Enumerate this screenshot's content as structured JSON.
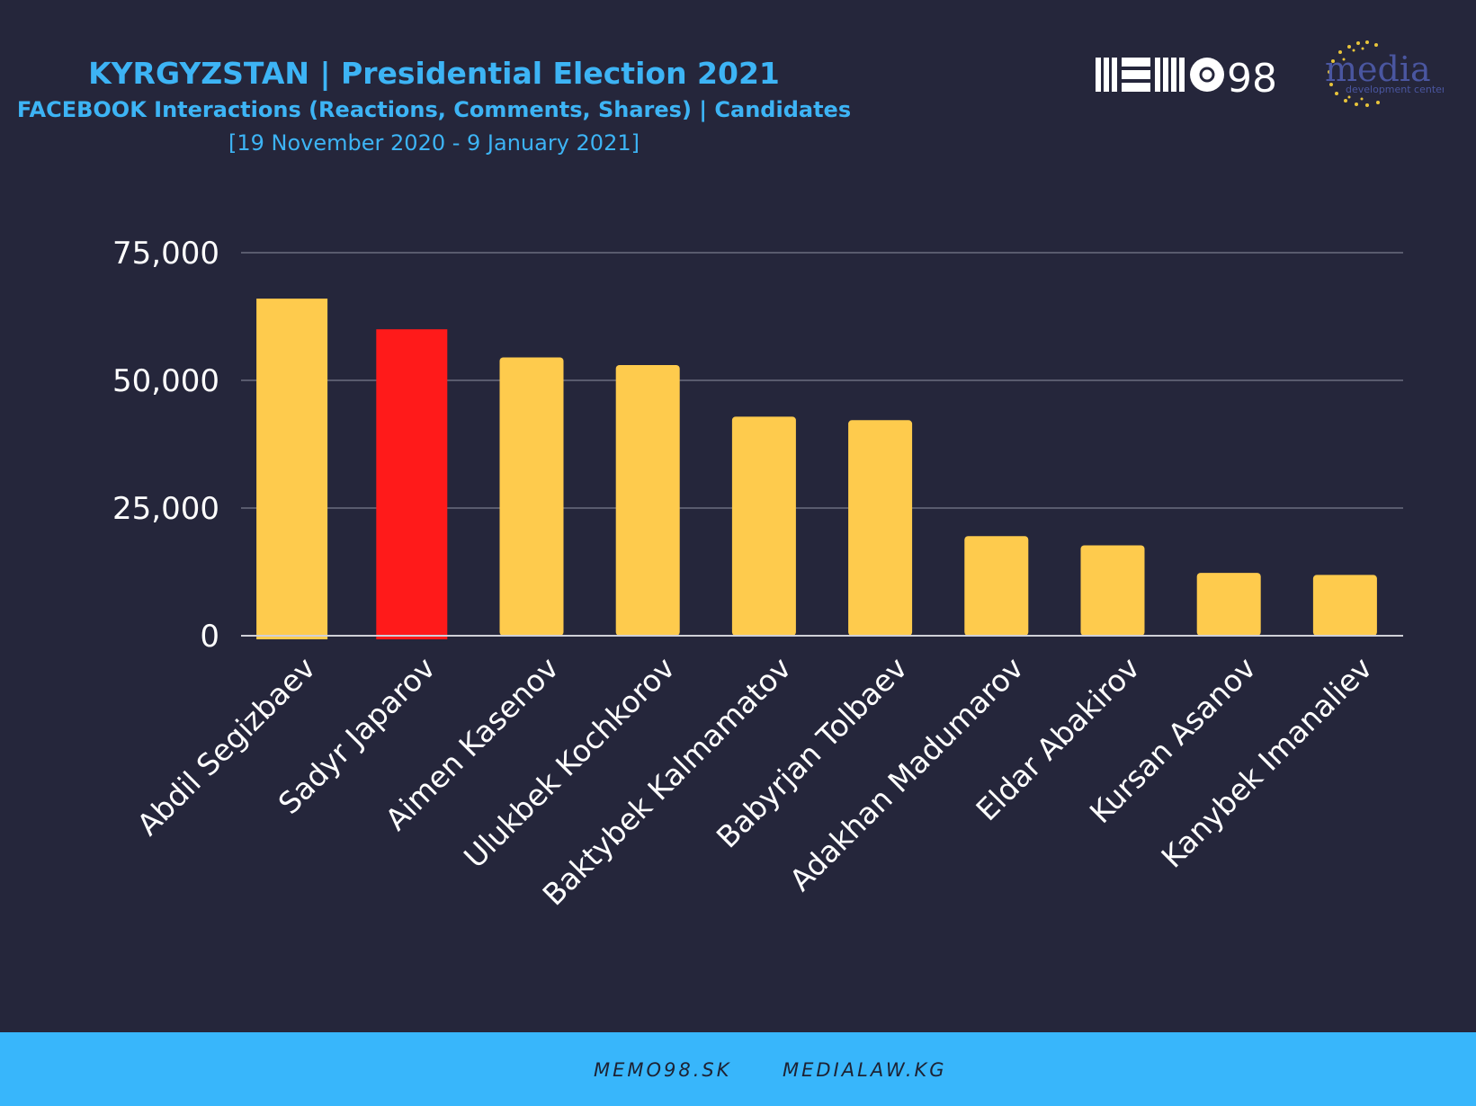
{
  "header": {
    "title": "KYRGYZSTAN | Presidential Election 2021",
    "subtitle": "FACEBOOK Interactions (Reactions, Comments, Shares) | Candidates",
    "date_range": "[19 November 2020 - 9 January 2021]"
  },
  "logos": {
    "memo98": "MEMO98",
    "media_center": "media development center"
  },
  "footer": {
    "link1": "MEMO98.SK",
    "link2": "MEDIALAW.KG"
  },
  "colors": {
    "background": "#25263b",
    "bar_default": "#fecb4d",
    "bar_highlight": "#ff1a1a",
    "title_blue": "#3db4f5",
    "footer_blue": "#38b6fb"
  },
  "chart_data": {
    "type": "bar",
    "categories": [
      "Abdil Segizbaev",
      "Sadyr Japarov",
      "Aimen Kasenov",
      "Ulukbek Kochkorov",
      "Baktybek Kalmamatov",
      "Babyrjan Tolbaev",
      "Adakhan Madumarov",
      "Eldar Abakirov",
      "Kursan Asanov",
      "Kanybek Imanaliev"
    ],
    "values": [
      66000,
      60000,
      54500,
      53000,
      42900,
      42200,
      19500,
      17700,
      12300,
      11900
    ],
    "highlight": [
      "Sadyr Japarov"
    ],
    "ylim": [
      0,
      75000
    ],
    "yticks": [
      0,
      25000,
      50000,
      75000
    ],
    "ytick_labels": [
      "0",
      "25,000",
      "50,000",
      "75,000"
    ],
    "grid": true,
    "xlabel": "",
    "ylabel": ""
  }
}
